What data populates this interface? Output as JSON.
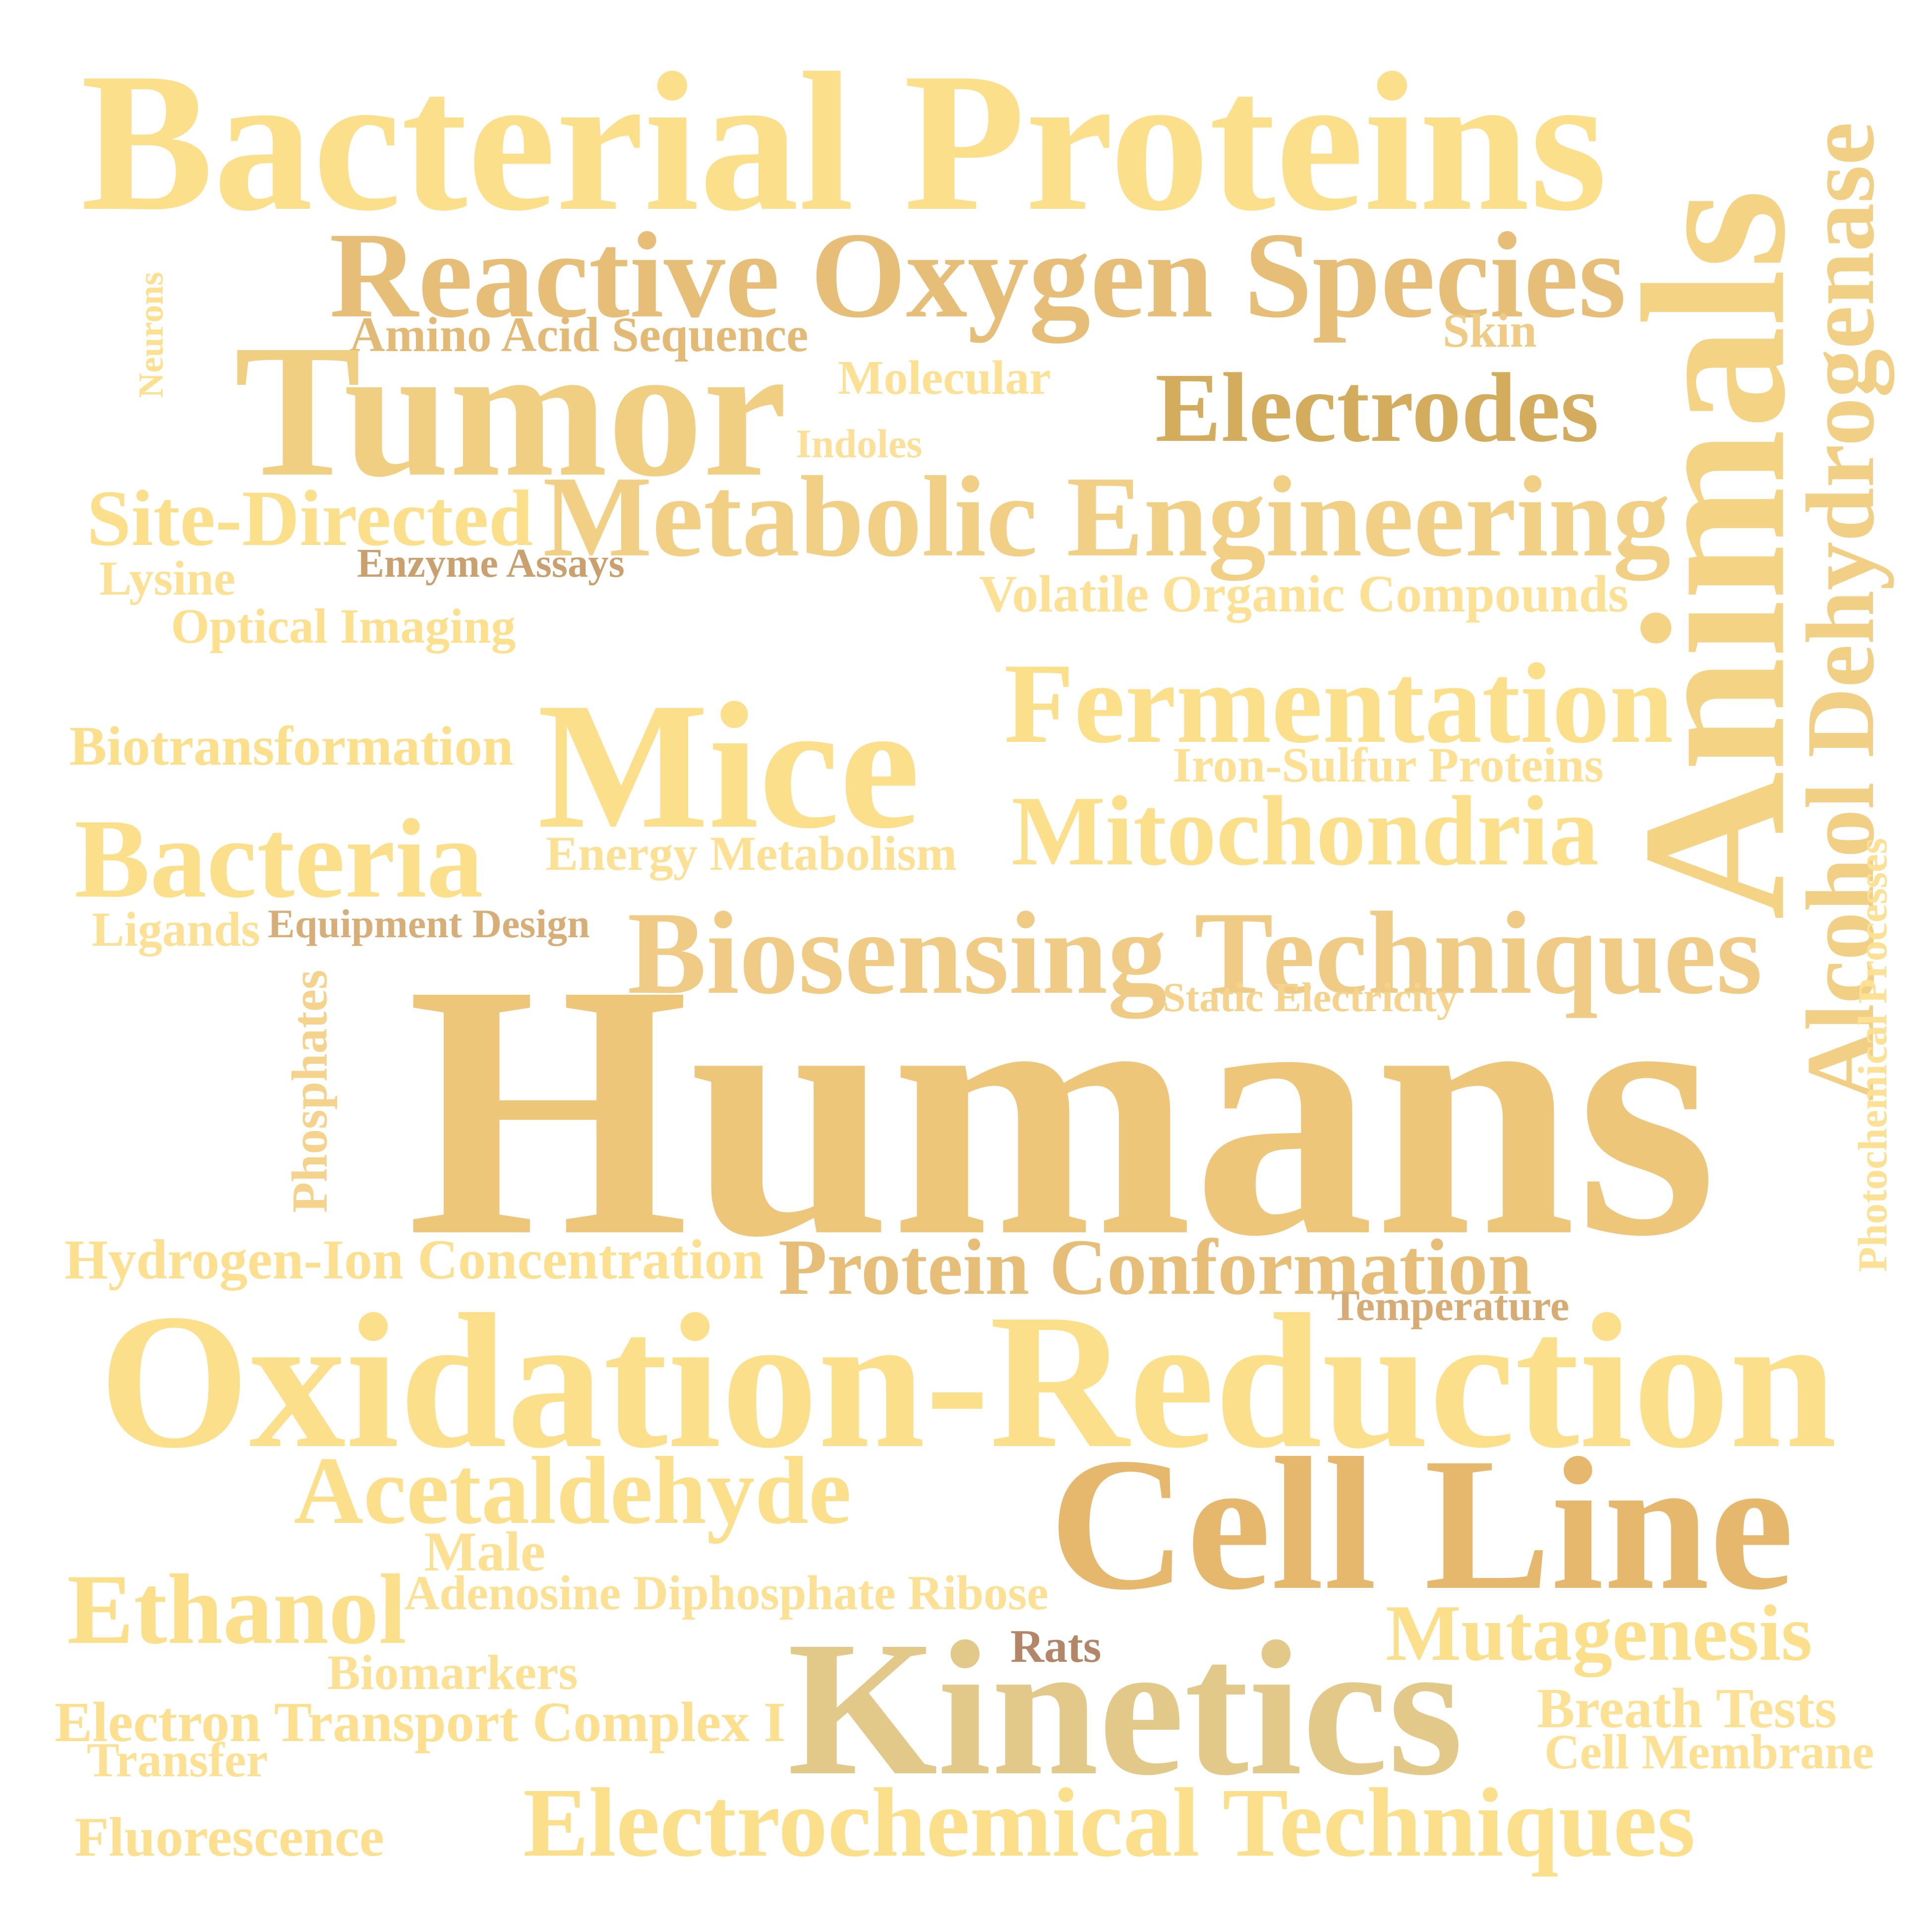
{
  "words": [
    {
      "text": "Bacterial Proteins",
      "color": "#FCDF8A",
      "vertical": false
    },
    {
      "text": "Reactive Oxygen Species",
      "color": "#E6BE78",
      "vertical": false
    },
    {
      "text": "Amino Acid Sequence",
      "color": "#E2BA76",
      "vertical": false
    },
    {
      "text": "Skin",
      "color": "#EFCB85",
      "vertical": false
    },
    {
      "text": "Neurons",
      "color": "#FCDF8F",
      "vertical": true
    },
    {
      "text": "Tumor",
      "color": "#F1CF82",
      "vertical": false
    },
    {
      "text": "Molecular",
      "color": "#FCE093",
      "vertical": false
    },
    {
      "text": "Electrodes",
      "color": "#D4AC5E",
      "vertical": false
    },
    {
      "text": "Indoles",
      "color": "#FCE099",
      "vertical": false
    },
    {
      "text": "Site-Directed",
      "color": "#FCDF8A",
      "vertical": false
    },
    {
      "text": "Metabolic Engineering",
      "color": "#F1CF84",
      "vertical": false
    },
    {
      "text": "Enzyme Assays",
      "color": "#C9A06E",
      "vertical": false
    },
    {
      "text": "Lysine",
      "color": "#FCE093",
      "vertical": false
    },
    {
      "text": "Volatile Organic Compounds",
      "color": "#FCE093",
      "vertical": false
    },
    {
      "text": "Optical Imaging",
      "color": "#FCE08D",
      "vertical": false
    },
    {
      "text": "Animals",
      "color": "#F5D385",
      "vertical": true
    },
    {
      "text": "Alcohol Dehydrogenase",
      "color": "#F1CF84",
      "vertical": true
    },
    {
      "text": "Fermentation",
      "color": "#FCDF8A",
      "vertical": false
    },
    {
      "text": "Biotransformation",
      "color": "#FCDF8A",
      "vertical": false
    },
    {
      "text": "Mice",
      "color": "#FCDF8A",
      "vertical": false
    },
    {
      "text": "Iron-Sulfur Proteins",
      "color": "#FCE093",
      "vertical": false
    },
    {
      "text": "Bacteria",
      "color": "#FCDF8A",
      "vertical": false
    },
    {
      "text": "Mitochondria",
      "color": "#FCDF8A",
      "vertical": false
    },
    {
      "text": "Energy Metabolism",
      "color": "#FCE093",
      "vertical": false
    },
    {
      "text": "Photochemical Processes",
      "color": "#FCE093",
      "vertical": true
    },
    {
      "text": "Ligands",
      "color": "#FCE093",
      "vertical": false
    },
    {
      "text": "Equipment Design",
      "color": "#D8AE78",
      "vertical": false
    },
    {
      "text": "Biosensing Techniques",
      "color": "#EFCB85",
      "vertical": false
    },
    {
      "text": "Static Electricity",
      "color": "#F5D38D",
      "vertical": false
    },
    {
      "text": "Phosphates",
      "color": "#F5D38D",
      "vertical": true
    },
    {
      "text": "Humans",
      "color": "#EDC67A",
      "vertical": false
    },
    {
      "text": "Hydrogen-Ion Concentration",
      "color": "#FCDF8F",
      "vertical": false
    },
    {
      "text": "Protein Conformation",
      "color": "#E6BE78",
      "vertical": false
    },
    {
      "text": "Temperature",
      "color": "#D6AC74",
      "vertical": false
    },
    {
      "text": "Oxidation-Reduction",
      "color": "#FCDF8A",
      "vertical": false
    },
    {
      "text": "Acetaldehyde",
      "color": "#FCDF8A",
      "vertical": false
    },
    {
      "text": "Cell Line",
      "color": "#E6B86E",
      "vertical": false
    },
    {
      "text": "Male",
      "color": "#FCE093",
      "vertical": false
    },
    {
      "text": "Adenosine Diphosphate Ribose",
      "color": "#FCE093",
      "vertical": false
    },
    {
      "text": "Ethanol",
      "color": "#FCDF8A",
      "vertical": false
    },
    {
      "text": "Mutagenesis",
      "color": "#FCDF8A",
      "vertical": false
    },
    {
      "text": "Rats",
      "color": "#B28666",
      "vertical": false
    },
    {
      "text": "Biomarkers",
      "color": "#FCE093",
      "vertical": false
    },
    {
      "text": "Kinetics",
      "color": "#E2C98A",
      "vertical": false
    },
    {
      "text": "Electron Transport Complex I",
      "color": "#FCDF8F",
      "vertical": false
    },
    {
      "text": "Breath Tests",
      "color": "#FCE093",
      "vertical": false
    },
    {
      "text": "Transfer",
      "color": "#FCE093",
      "vertical": false
    },
    {
      "text": "Cell Membrane",
      "color": "#FCE093",
      "vertical": false
    },
    {
      "text": "Electrochemical Techniques",
      "color": "#FCDF8A",
      "vertical": false
    },
    {
      "text": "Fluorescence",
      "color": "#FCDF8F",
      "vertical": false
    }
  ]
}
